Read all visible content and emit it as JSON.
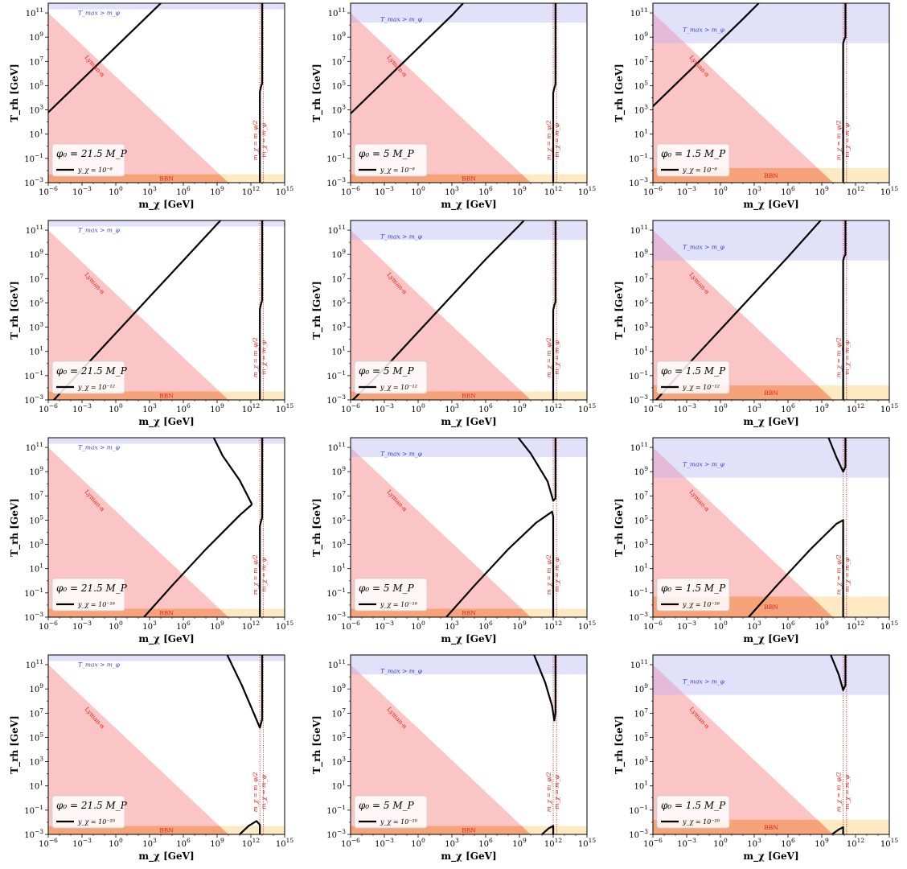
{
  "figure": {
    "x_axis_label": "m_χ [GeV]",
    "y_axis_label": "T_rh [GeV]",
    "x_tick_exponents": [
      -6,
      -3,
      0,
      3,
      6,
      9,
      12,
      15
    ],
    "y_tick_exponents": [
      -3,
      -1,
      1,
      3,
      5,
      7,
      9,
      11
    ],
    "x_tick_base": "10",
    "y_tick_base": "10",
    "region_labels": {
      "tmax": "T_max > m_φ",
      "lyman": "Lyman-α",
      "bbn": "BBN",
      "half_mass": "m_χ = m_φ/2",
      "mass": "m_χ = m_φ"
    },
    "colors": {
      "lyman_fill": "#fcc5c5",
      "bbn_fill": "#fde6b8",
      "tmax_fill": "#dcdcf8",
      "label_red": "#e2231a",
      "label_blue": "#3a3ae0",
      "curve": "#000000"
    }
  },
  "chart_data": [
    {
      "type": "line",
      "phi0_label": "φ₀ = 21.5 M_P",
      "coupling_label": "y_χ = 10⁻⁸",
      "xlim": [
        -6,
        15
      ],
      "ylim": [
        -3,
        11.8
      ],
      "log_axes": true,
      "tmax_band": [
        11.3,
        12
      ],
      "bbn_band": [
        -3,
        -2.3
      ],
      "lyman_line": [
        [
          -6,
          11
        ],
        [
          10,
          -3
        ]
      ],
      "mass_lines": [
        12.8,
        13.1
      ],
      "series": [
        {
          "values": [
            [
              -6,
              2.8
            ],
            [
              -5,
              3.7
            ],
            [
              -3,
              5.5
            ],
            [
              -1,
              7.3
            ],
            [
              1,
              9.1
            ],
            [
              3,
              10.9
            ],
            [
              4,
              11.8
            ]
          ]
        },
        {
          "values": [
            [
              12.8,
              -3
            ],
            [
              12.8,
              4.5
            ],
            [
              12.9,
              4.9
            ],
            [
              13,
              5.2
            ],
            [
              13,
              11.8
            ]
          ]
        }
      ]
    },
    {
      "type": "line",
      "phi0_label": "φ₀ = 5 M_P",
      "coupling_label": "y_χ = 10⁻⁸",
      "xlim": [
        -6,
        15
      ],
      "ylim": [
        -3,
        11.8
      ],
      "log_axes": true,
      "tmax_band": [
        10.2,
        12
      ],
      "bbn_band": [
        -3,
        -2.3
      ],
      "lyman_line": [
        [
          -6,
          11
        ],
        [
          10,
          -3
        ]
      ],
      "mass_lines": [
        12,
        12.3
      ],
      "series": [
        {
          "values": [
            [
              -6,
              2.7
            ],
            [
              -5,
              3.6
            ],
            [
              -3,
              5.4
            ],
            [
              -1,
              7.2
            ],
            [
              1,
              9
            ],
            [
              3,
              10.8
            ],
            [
              4,
              11.8
            ]
          ]
        },
        {
          "values": [
            [
              12,
              -3
            ],
            [
              12,
              4.4
            ],
            [
              12.1,
              4.8
            ],
            [
              12.2,
              5.1
            ],
            [
              12.2,
              11.8
            ]
          ]
        }
      ]
    },
    {
      "type": "line",
      "phi0_label": "φ₀ = 1.5 M_P",
      "coupling_label": "y_χ = 10⁻⁸",
      "xlim": [
        -6,
        15
      ],
      "ylim": [
        -3,
        11.8
      ],
      "log_axes": true,
      "tmax_band": [
        8.5,
        12
      ],
      "bbn_band": [
        -3,
        -1.8
      ],
      "lyman_line": [
        [
          -6,
          11
        ],
        [
          10,
          -3
        ]
      ],
      "mass_lines": [
        10.9,
        11.2
      ],
      "series": [
        {
          "values": [
            [
              -6,
              3.3
            ],
            [
              -4,
              5.1
            ],
            [
              -2,
              6.9
            ],
            [
              0,
              8.7
            ],
            [
              2,
              10.5
            ],
            [
              3.4,
              11.8
            ]
          ]
        },
        {
          "values": [
            [
              10.9,
              -3
            ],
            [
              10.9,
              8.5
            ],
            [
              11,
              8.8
            ],
            [
              11.1,
              9.0
            ],
            [
              11.1,
              11.8
            ]
          ]
        }
      ]
    },
    {
      "type": "line",
      "phi0_label": "φ₀ = 21.5 M_P",
      "coupling_label": "y_χ = 10⁻¹²",
      "xlim": [
        -6,
        15
      ],
      "ylim": [
        -3,
        11.8
      ],
      "log_axes": true,
      "tmax_band": [
        11.3,
        12
      ],
      "bbn_band": [
        -3,
        -2.3
      ],
      "lyman_line": [
        [
          -6,
          11
        ],
        [
          10,
          -3
        ]
      ],
      "mass_lines": [
        12.8,
        13.1
      ],
      "series": [
        {
          "values": [
            [
              -5.5,
              -3
            ],
            [
              -3,
              -0.5
            ],
            [
              0,
              2.5
            ],
            [
              3,
              5.5
            ],
            [
              6,
              8.5
            ],
            [
              9,
              11.5
            ],
            [
              9.3,
              11.8
            ]
          ]
        },
        {
          "values": [
            [
              12.8,
              -3
            ],
            [
              12.8,
              4.5
            ],
            [
              12.9,
              4.9
            ],
            [
              13,
              5.2
            ],
            [
              13,
              11.8
            ]
          ]
        }
      ]
    },
    {
      "type": "line",
      "phi0_label": "φ₀ = 5 M_P",
      "coupling_label": "y_χ = 10⁻¹²",
      "xlim": [
        -6,
        15
      ],
      "ylim": [
        -3,
        11.8
      ],
      "log_axes": true,
      "tmax_band": [
        10.2,
        12
      ],
      "bbn_band": [
        -3,
        -2.3
      ],
      "lyman_line": [
        [
          -6,
          11
        ],
        [
          10,
          -3
        ]
      ],
      "mass_lines": [
        12,
        12.3
      ],
      "series": [
        {
          "values": [
            [
              -5.8,
              -3
            ],
            [
              -3,
              -0.4
            ],
            [
              0,
              2.6
            ],
            [
              3,
              5.6
            ],
            [
              6,
              8.6
            ],
            [
              9,
              11.4
            ],
            [
              9.4,
              11.8
            ]
          ]
        },
        {
          "values": [
            [
              12,
              -3
            ],
            [
              12,
              4.4
            ],
            [
              12.1,
              4.8
            ],
            [
              12.2,
              5.1
            ],
            [
              12.2,
              11.8
            ]
          ]
        }
      ]
    },
    {
      "type": "line",
      "phi0_label": "φ₀ = 1.5 M_P",
      "coupling_label": "y_χ = 10⁻¹²",
      "xlim": [
        -6,
        15
      ],
      "ylim": [
        -3,
        11.8
      ],
      "log_axes": true,
      "tmax_band": [
        8.5,
        12
      ],
      "bbn_band": [
        -3,
        -1.8
      ],
      "lyman_line": [
        [
          -6,
          11
        ],
        [
          10,
          -3
        ]
      ],
      "mass_lines": [
        10.9,
        11.2
      ],
      "series": [
        {
          "values": [
            [
              -5.7,
              -3
            ],
            [
              -3,
              -0.2
            ],
            [
              0,
              2.8
            ],
            [
              3,
              5.8
            ],
            [
              6,
              8.8
            ],
            [
              8.9,
              11.8
            ]
          ]
        },
        {
          "values": [
            [
              10.9,
              -3
            ],
            [
              10.9,
              8.5
            ],
            [
              11,
              8.8
            ],
            [
              11.1,
              9.0
            ],
            [
              11.1,
              11.8
            ]
          ]
        }
      ]
    },
    {
      "type": "line",
      "phi0_label": "φ₀ = 21.5 M_P",
      "coupling_label": "y_χ = 10⁻¹⁶",
      "xlim": [
        -6,
        15
      ],
      "ylim": [
        -3,
        11.8
      ],
      "log_axes": true,
      "tmax_band": [
        11.3,
        12
      ],
      "bbn_band": [
        -3,
        -2.3
      ],
      "lyman_line": [
        [
          -6,
          11
        ],
        [
          10,
          -3
        ]
      ],
      "mass_lines": [
        12.8,
        13.1
      ],
      "series": [
        {
          "values": [
            [
              2.5,
              -3
            ],
            [
              5,
              -0.4
            ],
            [
              8,
              2.6
            ],
            [
              11,
              5.4
            ],
            [
              12.1,
              6.3
            ]
          ]
        },
        {
          "values": [
            [
              12.1,
              6.3
            ],
            [
              11,
              8.3
            ],
            [
              9.5,
              10.3
            ],
            [
              8.7,
              11.8
            ]
          ]
        },
        {
          "values": [
            [
              12.8,
              -3
            ],
            [
              12.8,
              4.5
            ],
            [
              12.9,
              4.9
            ],
            [
              13,
              5.2
            ],
            [
              13,
              11.8
            ]
          ]
        }
      ]
    },
    {
      "type": "line",
      "phi0_label": "φ₀ = 5 M_P",
      "coupling_label": "y_χ = 10⁻¹⁶",
      "xlim": [
        -6,
        15
      ],
      "ylim": [
        -3,
        11.8
      ],
      "log_axes": true,
      "tmax_band": [
        10.2,
        12
      ],
      "bbn_band": [
        -3,
        -2.3
      ],
      "lyman_line": [
        [
          -6,
          11
        ],
        [
          10,
          -3
        ]
      ],
      "mass_lines": [
        12,
        12.3
      ],
      "series": [
        {
          "values": [
            [
              2.5,
              -3
            ],
            [
              5,
              -0.4
            ],
            [
              8,
              2.6
            ],
            [
              10.5,
              4.8
            ],
            [
              11.9,
              5.7
            ],
            [
              12,
              5.3
            ],
            [
              12,
              -3
            ]
          ]
        },
        {
          "values": [
            [
              8.9,
              11.8
            ],
            [
              10,
              10.5
            ],
            [
              11.5,
              8.2
            ],
            [
              12,
              6.6
            ],
            [
              12.2,
              6.8
            ],
            [
              12.2,
              11.8
            ]
          ]
        }
      ]
    },
    {
      "type": "line",
      "phi0_label": "φ₀ = 1.5 M_P",
      "coupling_label": "y_χ = 10⁻¹⁶",
      "xlim": [
        -6,
        15
      ],
      "ylim": [
        -3,
        11.8
      ],
      "log_axes": true,
      "tmax_band": [
        8.5,
        12
      ],
      "bbn_band": [
        -3,
        -1.3
      ],
      "lyman_line": [
        [
          -6,
          11
        ],
        [
          10,
          -3
        ]
      ],
      "mass_lines": [
        10.9,
        11.2
      ],
      "series": [
        {
          "values": [
            [
              2.5,
              -3
            ],
            [
              5,
              -0.4
            ],
            [
              8,
              2.6
            ],
            [
              10.3,
              4.7
            ],
            [
              10.9,
              5.0
            ],
            [
              10.9,
              -3
            ]
          ]
        },
        {
          "values": [
            [
              9.6,
              11.8
            ],
            [
              10.3,
              10.2
            ],
            [
              10.9,
              9
            ],
            [
              11.1,
              9.4
            ],
            [
              11.1,
              11.8
            ]
          ]
        }
      ]
    },
    {
      "type": "line",
      "phi0_label": "φ₀ = 21.5 M_P",
      "coupling_label": "y_χ = 10⁻²⁰",
      "xlim": [
        -6,
        15
      ],
      "ylim": [
        -3,
        11.8
      ],
      "log_axes": true,
      "tmax_band": [
        11.3,
        12
      ],
      "bbn_band": [
        -3,
        -2.3
      ],
      "lyman_line": [
        [
          -6,
          11
        ],
        [
          10,
          -3
        ]
      ],
      "mass_lines": [
        12.8,
        13.1
      ],
      "series": [
        {
          "values": [
            [
              11,
              -3
            ],
            [
              11.8,
              -2.3
            ],
            [
              12.5,
              -1.9
            ],
            [
              12.8,
              -2.2
            ],
            [
              12.8,
              -3
            ]
          ]
        },
        {
          "values": [
            [
              9.9,
              11.8
            ],
            [
              11.2,
              9.3
            ],
            [
              12.3,
              6.9
            ],
            [
              12.8,
              5.8
            ],
            [
              13,
              6.5
            ],
            [
              13,
              11.8
            ]
          ]
        }
      ]
    },
    {
      "type": "line",
      "phi0_label": "φ₀ = 5 M_P",
      "coupling_label": "y_χ = 10⁻²⁰",
      "xlim": [
        -6,
        15
      ],
      "ylim": [
        -3,
        11.8
      ],
      "log_axes": true,
      "tmax_band": [
        10.2,
        12
      ],
      "bbn_band": [
        -3,
        -2.3
      ],
      "lyman_line": [
        [
          -6,
          11
        ],
        [
          10,
          -3
        ]
      ],
      "mass_lines": [
        12,
        12.3
      ],
      "series": [
        {
          "values": [
            [
              11,
              -3
            ],
            [
              11.6,
              -2.5
            ],
            [
              12,
              -2.3
            ],
            [
              12,
              -3
            ]
          ]
        },
        {
          "values": [
            [
              10.3,
              11.8
            ],
            [
              11.3,
              9.5
            ],
            [
              11.9,
              7.6
            ],
            [
              12.1,
              6.4
            ],
            [
              12.2,
              7
            ],
            [
              12.2,
              11.8
            ]
          ]
        }
      ]
    },
    {
      "type": "line",
      "phi0_label": "φ₀ = 1.5 M_P",
      "coupling_label": "y_χ = 10⁻²⁰",
      "xlim": [
        -6,
        15
      ],
      "ylim": [
        -3,
        11.8
      ],
      "log_axes": true,
      "tmax_band": [
        8.5,
        12
      ],
      "bbn_band": [
        -3,
        -1.8
      ],
      "lyman_line": [
        [
          -6,
          11
        ],
        [
          10,
          -3
        ]
      ],
      "mass_lines": [
        10.9,
        11.2
      ],
      "series": [
        {
          "values": [
            [
              9.9,
              -3
            ],
            [
              10.5,
              -2.6
            ],
            [
              10.9,
              -2.4
            ],
            [
              10.9,
              -3
            ]
          ]
        },
        {
          "values": [
            [
              9.8,
              11.8
            ],
            [
              10.5,
              10.2
            ],
            [
              10.9,
              8.9
            ],
            [
              11.1,
              9.3
            ],
            [
              11.1,
              11.8
            ]
          ]
        }
      ]
    }
  ]
}
